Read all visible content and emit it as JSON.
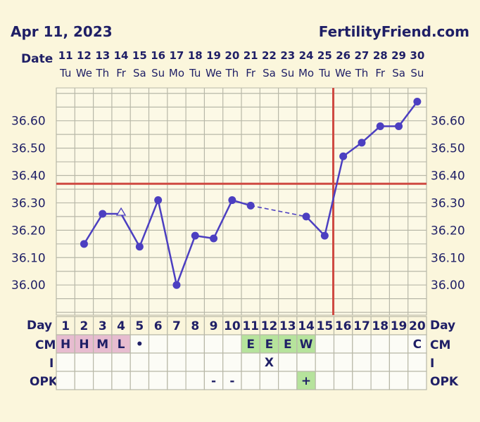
{
  "header": {
    "date": "Apr 11, 2023",
    "site": "FertilityFriend.com"
  },
  "labels": {
    "date": "Date",
    "day": "Day",
    "cm": "CM",
    "i": "I",
    "opk": "OPK"
  },
  "colors": {
    "background": "#fbf6dc",
    "grid": "#b8b8a8",
    "line": "#4c3fc1",
    "coverline": "#cf4a42",
    "text": "#1f1f66",
    "cm_pink": "#e7bcd0",
    "cm_green": "#b6e39c",
    "opk_green": "#b6e39c"
  },
  "chart_data": {
    "type": "line",
    "dates": [
      "11",
      "12",
      "13",
      "14",
      "15",
      "16",
      "17",
      "18",
      "19",
      "20",
      "21",
      "22",
      "23",
      "24",
      "25",
      "26",
      "27",
      "28",
      "29",
      "30"
    ],
    "weekdays": [
      "Tu",
      "We",
      "Th",
      "Fr",
      "Sa",
      "Su",
      "Mo",
      "Tu",
      "We",
      "Th",
      "Fr",
      "Sa",
      "Su",
      "Mo",
      "Tu",
      "We",
      "Th",
      "Fr",
      "Sa",
      "Su"
    ],
    "cycle_days": [
      "1",
      "2",
      "3",
      "4",
      "5",
      "6",
      "7",
      "8",
      "9",
      "10",
      "11",
      "12",
      "13",
      "14",
      "15",
      "16",
      "17",
      "18",
      "19",
      "20"
    ],
    "temperatures": [
      null,
      36.15,
      36.26,
      36.26,
      36.14,
      36.31,
      36.0,
      36.18,
      36.17,
      36.31,
      36.29,
      null,
      null,
      36.25,
      36.18,
      36.47,
      36.52,
      36.58,
      36.58,
      36.67
    ],
    "open_marker_days": [
      4
    ],
    "dashed_segments": [
      [
        11,
        14
      ]
    ],
    "coverline": 36.37,
    "ovulation_day": 15,
    "ylim": [
      35.89,
      36.72
    ],
    "yticks": [
      "36.00",
      "36.10",
      "36.20",
      "36.30",
      "36.40",
      "36.50",
      "36.60"
    ],
    "cm": [
      "H",
      "H",
      "M",
      "L",
      "•",
      "",
      "",
      "",
      "",
      "",
      "E",
      "E",
      "E",
      "W",
      "",
      "",
      "",
      "",
      "",
      "C"
    ],
    "intercourse": [
      "",
      "",
      "",
      "",
      "",
      "",
      "",
      "",
      "",
      "",
      "",
      "X",
      "",
      "",
      "",
      "",
      "",
      "",
      "",
      ""
    ],
    "opk": [
      "",
      "",
      "",
      "",
      "",
      "",
      "",
      "",
      "-",
      "-",
      "",
      "",
      "",
      "+",
      "",
      "",
      "",
      "",
      "",
      ""
    ]
  }
}
